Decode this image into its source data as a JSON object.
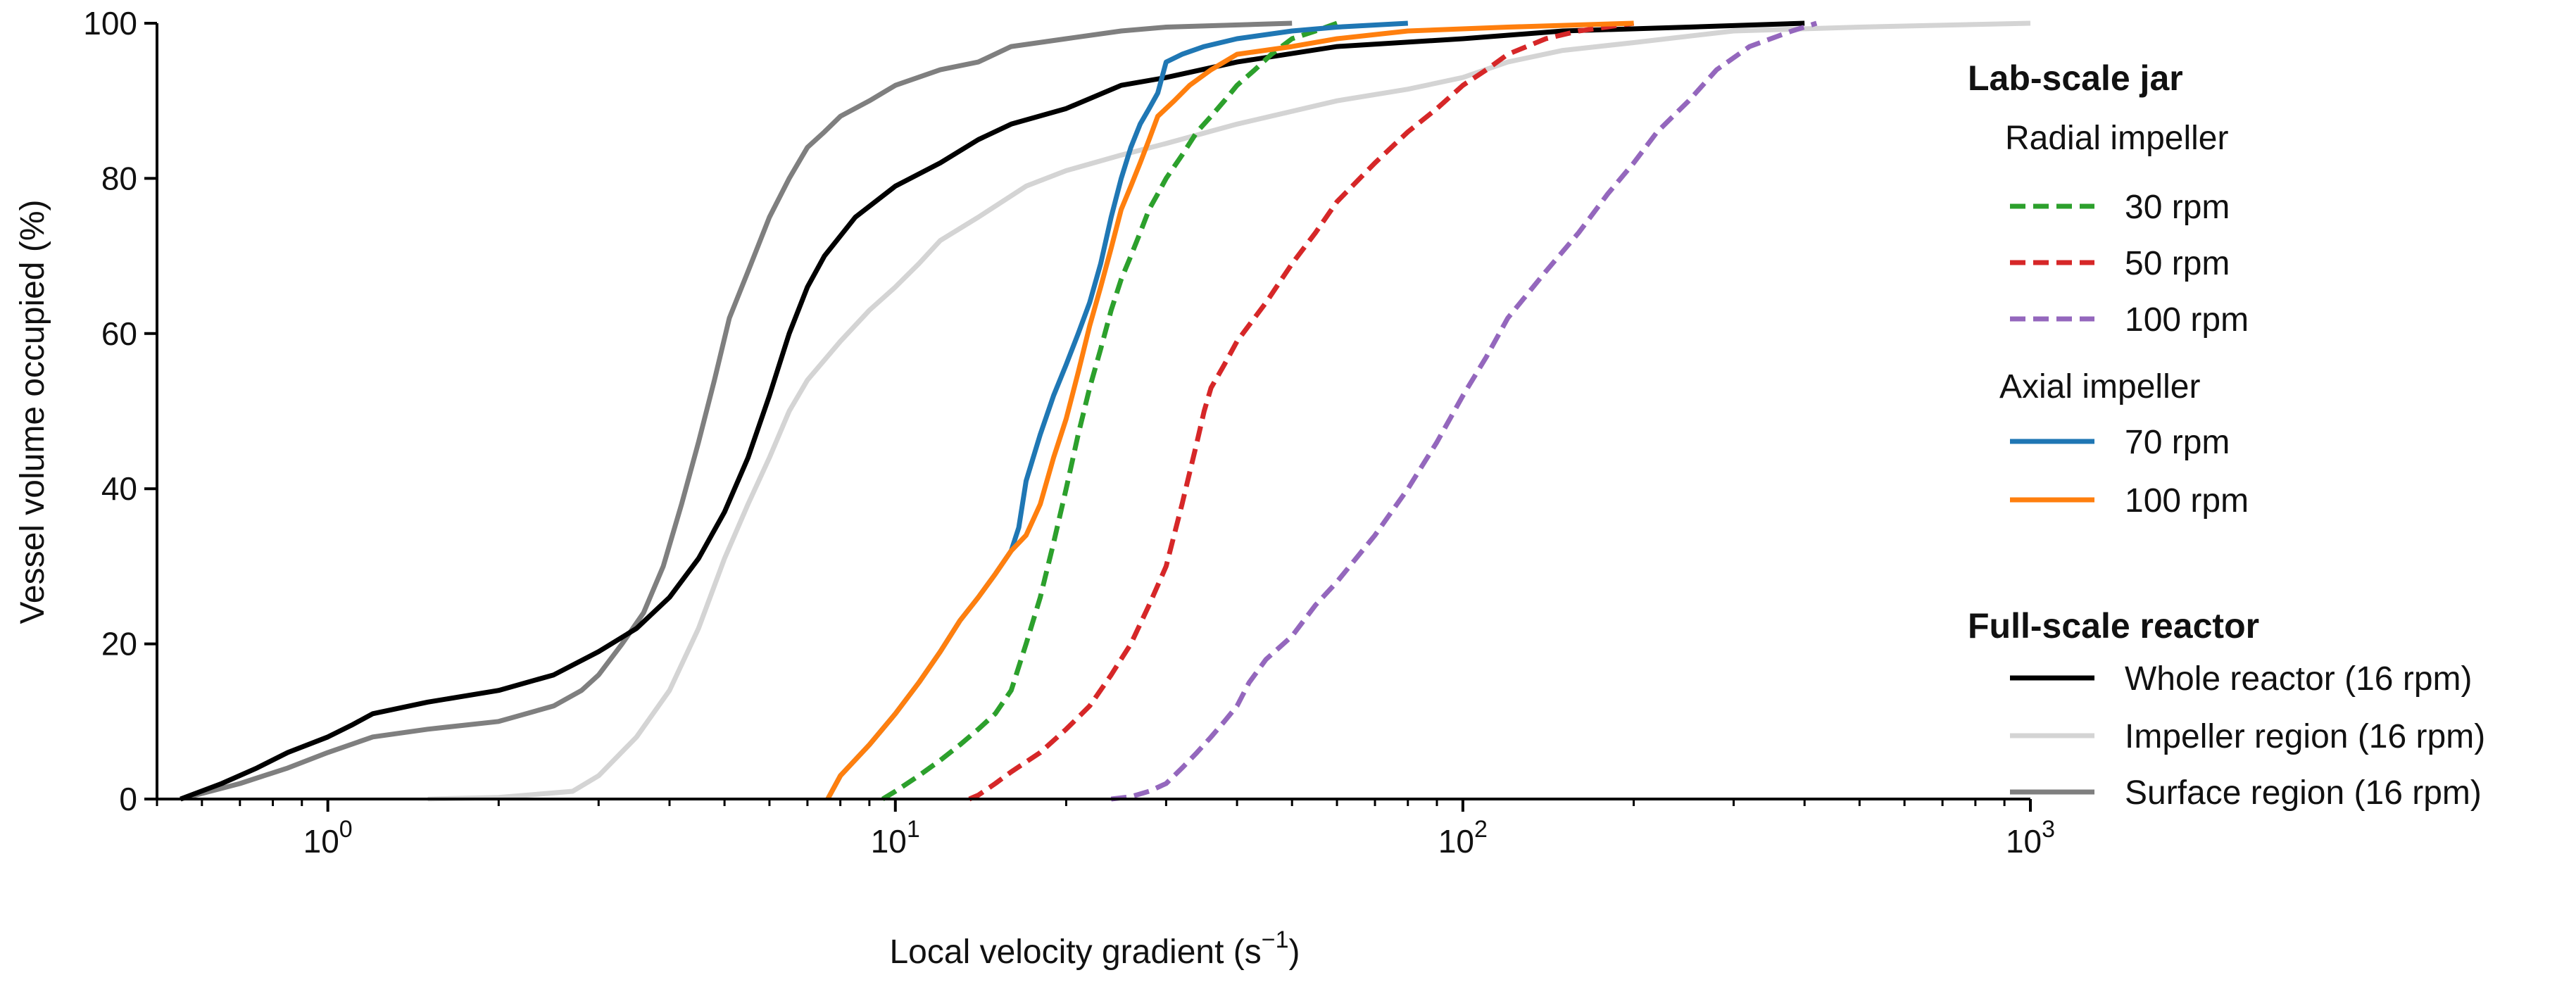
{
  "chart_data": {
    "type": "line",
    "xscale": "log",
    "xlim": [
      0.5,
      1000
    ],
    "ylim": [
      0,
      100
    ],
    "xlabel": "Local velocity gradient (s",
    "xlabel_exponent": "−1",
    "xlabel_suffix": ")",
    "ylabel": "Vessel volume occupied (%)",
    "x_ticks": [
      {
        "base": "10",
        "exp": "0",
        "value": 1
      },
      {
        "base": "10",
        "exp": "1",
        "value": 10
      },
      {
        "base": "10",
        "exp": "2",
        "value": 100
      },
      {
        "base": "10",
        "exp": "3",
        "value": 1000
      }
    ],
    "y_ticks": [
      {
        "label": "0",
        "value": 0
      },
      {
        "label": "20",
        "value": 20
      },
      {
        "label": "40",
        "value": 40
      },
      {
        "label": "60",
        "value": 60
      },
      {
        "label": "80",
        "value": 80
      },
      {
        "label": "100",
        "value": 100
      }
    ],
    "legend": {
      "group1_title": "Lab-scale jar",
      "radial_title": "Radial impeller",
      "axial_title": "Axial impeller",
      "group2_title": "Full-scale reactor"
    },
    "series": [
      {
        "name": "30 rpm",
        "group": "radial",
        "color": "#2ca02c",
        "dashed": true,
        "points": [
          [
            9.5,
            0
          ],
          [
            10,
            1
          ],
          [
            11,
            3
          ],
          [
            12,
            5
          ],
          [
            13,
            7
          ],
          [
            14,
            9
          ],
          [
            15,
            11
          ],
          [
            16,
            14
          ],
          [
            17,
            20
          ],
          [
            18,
            26
          ],
          [
            19,
            33
          ],
          [
            20,
            40
          ],
          [
            21,
            47
          ],
          [
            22,
            53
          ],
          [
            23,
            58
          ],
          [
            24,
            63
          ],
          [
            25,
            67
          ],
          [
            26,
            70
          ],
          [
            27,
            73
          ],
          [
            28,
            76
          ],
          [
            29,
            78
          ],
          [
            30,
            80
          ],
          [
            32,
            83
          ],
          [
            34,
            86
          ],
          [
            36,
            88
          ],
          [
            38,
            90
          ],
          [
            40,
            92
          ],
          [
            43,
            94
          ],
          [
            46,
            96
          ],
          [
            50,
            98
          ],
          [
            55,
            99
          ],
          [
            60,
            100
          ]
        ]
      },
      {
        "name": "50 rpm",
        "group": "radial",
        "color": "#d62728",
        "dashed": true,
        "points": [
          [
            13.5,
            0
          ],
          [
            14,
            0.5
          ],
          [
            15,
            2
          ],
          [
            16,
            3.5
          ],
          [
            18,
            6
          ],
          [
            20,
            9
          ],
          [
            22,
            12
          ],
          [
            24,
            16
          ],
          [
            26,
            20
          ],
          [
            28,
            25
          ],
          [
            30,
            30
          ],
          [
            32,
            38
          ],
          [
            34,
            46
          ],
          [
            35,
            50
          ],
          [
            36,
            53
          ],
          [
            38,
            56
          ],
          [
            40,
            59
          ],
          [
            45,
            64
          ],
          [
            50,
            69
          ],
          [
            55,
            73
          ],
          [
            60,
            77
          ],
          [
            70,
            82
          ],
          [
            80,
            86
          ],
          [
            90,
            89
          ],
          [
            100,
            92
          ],
          [
            110,
            94
          ],
          [
            120,
            96
          ],
          [
            140,
            98
          ],
          [
            160,
            99
          ],
          [
            200,
            100
          ]
        ]
      },
      {
        "name": "100 rpm",
        "group": "radial",
        "color": "#9467bd",
        "dashed": true,
        "points": [
          [
            24,
            0
          ],
          [
            26,
            0.3
          ],
          [
            28,
            1
          ],
          [
            30,
            2
          ],
          [
            32,
            4
          ],
          [
            34,
            6
          ],
          [
            36,
            8
          ],
          [
            38,
            10
          ],
          [
            40,
            12
          ],
          [
            42,
            15
          ],
          [
            45,
            18
          ],
          [
            50,
            21
          ],
          [
            55,
            25
          ],
          [
            60,
            28
          ],
          [
            70,
            34
          ],
          [
            80,
            40
          ],
          [
            90,
            46
          ],
          [
            100,
            52
          ],
          [
            110,
            57
          ],
          [
            120,
            62
          ],
          [
            140,
            68
          ],
          [
            160,
            73
          ],
          [
            180,
            78
          ],
          [
            200,
            82
          ],
          [
            220,
            86
          ],
          [
            250,
            90
          ],
          [
            280,
            94
          ],
          [
            320,
            97
          ],
          [
            380,
            99
          ],
          [
            420,
            100
          ]
        ]
      },
      {
        "name": "70 rpm",
        "group": "axial",
        "color": "#1f77b4",
        "dashed": false,
        "points": [
          [
            7.6,
            0
          ],
          [
            8,
            3
          ],
          [
            9,
            7
          ],
          [
            10,
            11
          ],
          [
            11,
            15
          ],
          [
            12,
            19
          ],
          [
            13,
            23
          ],
          [
            14,
            26
          ],
          [
            15,
            29
          ],
          [
            16,
            32
          ],
          [
            16.5,
            35
          ],
          [
            17,
            41
          ],
          [
            18,
            47
          ],
          [
            19,
            52
          ],
          [
            20,
            56
          ],
          [
            21,
            60
          ],
          [
            22,
            64
          ],
          [
            23,
            69
          ],
          [
            24,
            75
          ],
          [
            25,
            80
          ],
          [
            26,
            84
          ],
          [
            27,
            87
          ],
          [
            28,
            89
          ],
          [
            29,
            91
          ],
          [
            30,
            95
          ],
          [
            32,
            96
          ],
          [
            35,
            97
          ],
          [
            40,
            98
          ],
          [
            50,
            99
          ],
          [
            60,
            99.5
          ],
          [
            80,
            100
          ]
        ]
      },
      {
        "name": "100 rpm",
        "group": "axial",
        "color": "#ff7f0e",
        "dashed": false,
        "points": [
          [
            7.6,
            0
          ],
          [
            8,
            3
          ],
          [
            9,
            7
          ],
          [
            10,
            11
          ],
          [
            11,
            15
          ],
          [
            12,
            19
          ],
          [
            13,
            23
          ],
          [
            14,
            26
          ],
          [
            15,
            29
          ],
          [
            16,
            32
          ],
          [
            17,
            34
          ],
          [
            18,
            38
          ],
          [
            19,
            44
          ],
          [
            20,
            49
          ],
          [
            21,
            55
          ],
          [
            22,
            61
          ],
          [
            23,
            66
          ],
          [
            24,
            71
          ],
          [
            25,
            76
          ],
          [
            26,
            79
          ],
          [
            27,
            82
          ],
          [
            28,
            85
          ],
          [
            29,
            88
          ],
          [
            31,
            90
          ],
          [
            33,
            92
          ],
          [
            36,
            94
          ],
          [
            40,
            96
          ],
          [
            50,
            97
          ],
          [
            60,
            98
          ],
          [
            80,
            99
          ],
          [
            120,
            99.5
          ],
          [
            200,
            100
          ]
        ]
      },
      {
        "name": "Whole reactor (16 rpm)",
        "group": "full",
        "color": "#000000",
        "dashed": false,
        "points": [
          [
            0.55,
            0
          ],
          [
            0.65,
            2
          ],
          [
            0.75,
            4
          ],
          [
            0.85,
            6
          ],
          [
            1,
            8
          ],
          [
            1.1,
            9.5
          ],
          [
            1.2,
            11
          ],
          [
            1.5,
            12.5
          ],
          [
            2,
            14
          ],
          [
            2.5,
            16
          ],
          [
            3,
            19
          ],
          [
            3.5,
            22
          ],
          [
            4,
            26
          ],
          [
            4.5,
            31
          ],
          [
            5,
            37
          ],
          [
            5.5,
            44
          ],
          [
            6,
            52
          ],
          [
            6.5,
            60
          ],
          [
            7,
            66
          ],
          [
            7.5,
            70
          ],
          [
            8.5,
            75
          ],
          [
            10,
            79
          ],
          [
            12,
            82
          ],
          [
            14,
            85
          ],
          [
            16,
            87
          ],
          [
            20,
            89
          ],
          [
            25,
            92
          ],
          [
            30,
            93
          ],
          [
            40,
            95
          ],
          [
            60,
            97
          ],
          [
            100,
            98
          ],
          [
            150,
            99
          ],
          [
            250,
            99.5
          ],
          [
            400,
            100
          ]
        ]
      },
      {
        "name": "Impeller region (16 rpm)",
        "group": "full",
        "color": "#d4d4d4",
        "dashed": false,
        "points": [
          [
            1.5,
            0
          ],
          [
            2,
            0.2
          ],
          [
            2.7,
            1
          ],
          [
            3,
            3
          ],
          [
            3.5,
            8
          ],
          [
            4,
            14
          ],
          [
            4.5,
            22
          ],
          [
            5,
            31
          ],
          [
            5.5,
            38
          ],
          [
            6,
            44
          ],
          [
            6.5,
            50
          ],
          [
            7,
            54
          ],
          [
            8,
            59
          ],
          [
            9,
            63
          ],
          [
            10,
            66
          ],
          [
            11,
            69
          ],
          [
            12,
            72
          ],
          [
            14,
            75
          ],
          [
            17,
            79
          ],
          [
            20,
            81
          ],
          [
            25,
            83
          ],
          [
            30,
            84.5
          ],
          [
            40,
            87
          ],
          [
            60,
            90
          ],
          [
            80,
            91.5
          ],
          [
            100,
            93
          ],
          [
            120,
            95
          ],
          [
            150,
            96.5
          ],
          [
            200,
            97.5
          ],
          [
            300,
            99
          ],
          [
            500,
            99.5
          ],
          [
            1000,
            100
          ]
        ]
      },
      {
        "name": "Surface region (16 rpm)",
        "group": "full",
        "color": "#7f7f7f",
        "dashed": false,
        "points": [
          [
            0.55,
            0
          ],
          [
            0.7,
            2
          ],
          [
            0.85,
            4
          ],
          [
            1,
            6
          ],
          [
            1.2,
            8
          ],
          [
            1.5,
            9
          ],
          [
            2,
            10
          ],
          [
            2.5,
            12
          ],
          [
            2.8,
            14
          ],
          [
            3,
            16
          ],
          [
            3.3,
            20
          ],
          [
            3.6,
            24
          ],
          [
            3.9,
            30
          ],
          [
            4.2,
            38
          ],
          [
            4.5,
            46
          ],
          [
            4.8,
            54
          ],
          [
            5.1,
            62
          ],
          [
            5.5,
            68
          ],
          [
            6,
            75
          ],
          [
            6.5,
            80
          ],
          [
            7,
            84
          ],
          [
            7.5,
            86
          ],
          [
            8,
            88
          ],
          [
            9,
            90
          ],
          [
            10,
            92
          ],
          [
            12,
            94
          ],
          [
            14,
            95
          ],
          [
            16,
            97
          ],
          [
            20,
            98
          ],
          [
            25,
            99
          ],
          [
            30,
            99.5
          ],
          [
            50,
            100
          ]
        ]
      }
    ]
  }
}
